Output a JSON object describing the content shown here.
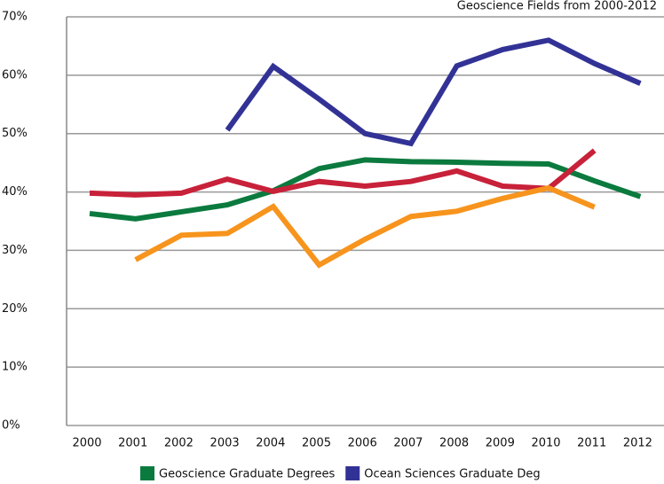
{
  "chart_data": {
    "type": "line",
    "title": "Geoscience Fields from 2000-2012",
    "categories": [
      "2000",
      "2001",
      "2002",
      "2003",
      "2004",
      "2005",
      "2006",
      "2007",
      "2008",
      "2009",
      "2010",
      "2011",
      "2012"
    ],
    "series": [
      {
        "name": "Geoscience Graduate Degrees",
        "color": "#0b7a3e",
        "values": [
          36.3,
          35.4,
          36.6,
          37.8,
          40.2,
          44.0,
          45.5,
          45.2,
          45.1,
          44.9,
          44.8,
          41.9,
          39.2
        ]
      },
      {
        "name": "Ocean Sciences Graduate Deg",
        "color": "#323296",
        "values": [
          null,
          null,
          null,
          50.6,
          61.5,
          55.9,
          50.0,
          48.3,
          61.6,
          64.4,
          66.0,
          62.0,
          58.6
        ]
      },
      {
        "color": "#c8213a",
        "values": [
          39.8,
          39.5,
          39.8,
          42.2,
          40.1,
          41.8,
          41.0,
          41.8,
          43.6,
          41.0,
          40.6,
          47.1,
          null
        ]
      },
      {
        "color": "#f7941d",
        "values": [
          null,
          28.4,
          32.6,
          32.9,
          37.5,
          27.5,
          31.9,
          35.8,
          36.7,
          38.9,
          40.7,
          37.4,
          null
        ]
      }
    ],
    "ylim": [
      0,
      70
    ],
    "yticks": [
      {
        "value": 0,
        "label": "0%"
      },
      {
        "value": 10,
        "label": "10%"
      },
      {
        "value": 20,
        "label": "20%"
      },
      {
        "value": 30,
        "label": "30%"
      },
      {
        "value": 40,
        "label": "40%"
      },
      {
        "value": 50,
        "label": "50%"
      },
      {
        "value": 60,
        "label": "60%"
      },
      {
        "value": 70,
        "label": "70%"
      }
    ],
    "grid": true
  }
}
